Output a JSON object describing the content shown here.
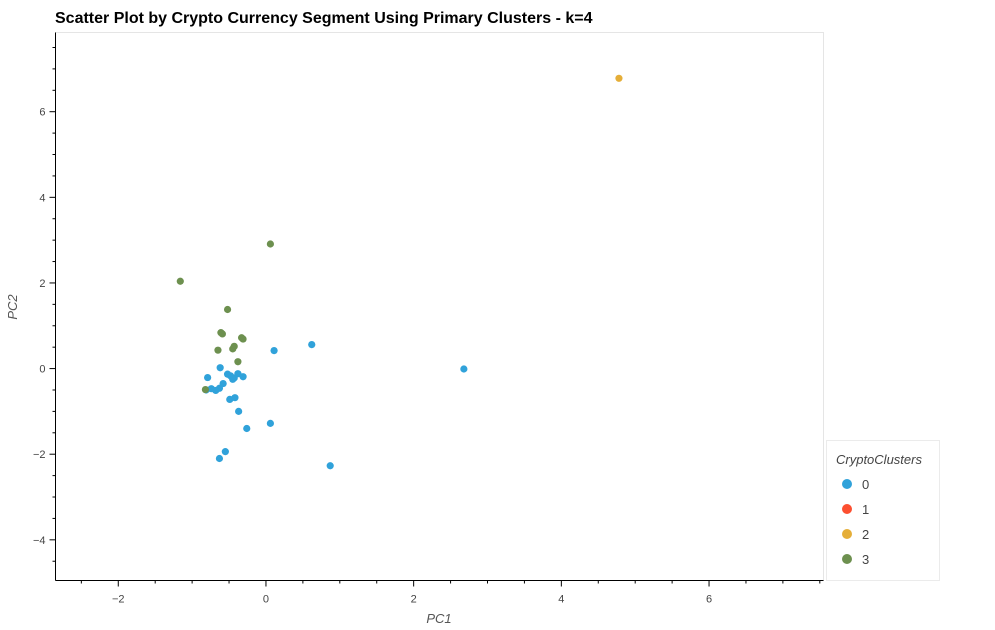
{
  "chart_data": {
    "type": "scatter",
    "title": "Scatter Plot by Crypto Currency Segment Using Primary Clusters - k=4",
    "xlabel": "PC1",
    "ylabel": "PC2",
    "xlim": [
      -2.85,
      7.55
    ],
    "ylim": [
      -4.95,
      7.85
    ],
    "x_ticks": [
      -2,
      0,
      2,
      4,
      6
    ],
    "y_ticks": [
      -4,
      -2,
      0,
      2,
      4,
      6
    ],
    "grid": false,
    "legend_position": "right-bottom",
    "legend_title": "CryptoClusters",
    "series": [
      {
        "name": "0",
        "color": "#30a2da",
        "points": [
          [
            -0.62,
            0.02
          ],
          [
            -0.79,
            -0.21
          ],
          [
            -0.48,
            -0.17
          ],
          [
            -0.43,
            -0.22
          ],
          [
            -0.38,
            -0.12
          ],
          [
            -0.31,
            -0.19
          ],
          [
            -0.58,
            -0.35
          ],
          [
            -0.63,
            -0.46
          ],
          [
            -0.68,
            -0.51
          ],
          [
            -0.74,
            -0.47
          ],
          [
            -0.81,
            -0.5
          ],
          [
            -0.49,
            -0.72
          ],
          [
            -0.42,
            -0.68
          ],
          [
            -0.37,
            -1.0
          ],
          [
            -0.26,
            -1.4
          ],
          [
            0.06,
            -1.28
          ],
          [
            -0.55,
            -1.94
          ],
          [
            -0.63,
            -2.1
          ],
          [
            0.11,
            0.42
          ],
          [
            0.62,
            0.56
          ],
          [
            0.87,
            -2.27
          ],
          [
            2.68,
            -0.01
          ],
          [
            -0.45,
            -0.25
          ],
          [
            -0.52,
            -0.13
          ]
        ]
      },
      {
        "name": "1",
        "color": "#fc4f30",
        "points": []
      },
      {
        "name": "2",
        "color": "#e5ae38",
        "points": [
          [
            4.78,
            6.78
          ]
        ]
      },
      {
        "name": "3",
        "color": "#6d904f",
        "points": [
          [
            0.06,
            2.91
          ],
          [
            -1.16,
            2.04
          ],
          [
            -0.52,
            1.38
          ],
          [
            -0.61,
            0.84
          ],
          [
            -0.59,
            0.81
          ],
          [
            -0.33,
            0.72
          ],
          [
            -0.31,
            0.69
          ],
          [
            -0.43,
            0.52
          ],
          [
            -0.45,
            0.46
          ],
          [
            -0.65,
            0.43
          ],
          [
            -0.38,
            0.16
          ],
          [
            -0.82,
            -0.49
          ]
        ]
      }
    ]
  }
}
